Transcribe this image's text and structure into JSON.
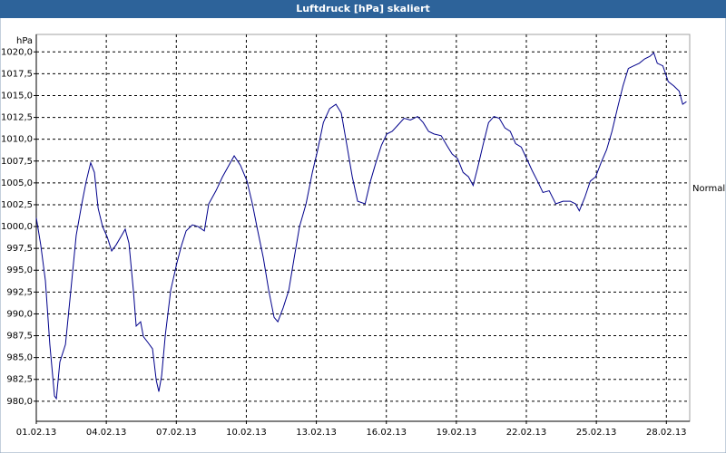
{
  "chart_data": {
    "type": "line",
    "title": "Luftdruck [hPa] skaliert",
    "y_label": "hPa",
    "annotation": "Normal",
    "x": [
      0,
      0.19,
      0.39,
      0.58,
      0.78,
      0.86,
      1.01,
      1.25,
      1.48,
      1.71,
      1.95,
      2.14,
      2.33,
      2.49,
      2.65,
      2.84,
      3.04,
      3.23,
      3.42,
      3.66,
      3.81,
      3.97,
      4.16,
      4.28,
      4.47,
      4.59,
      4.79,
      4.98,
      5.14,
      5.25,
      5.37,
      5.53,
      5.76,
      6.03,
      6.23,
      6.42,
      6.69,
      6.93,
      7.2,
      7.39,
      7.7,
      7.98,
      8.25,
      8.48,
      8.75,
      9.03,
      9.26,
      9.49,
      9.73,
      9.96,
      10.19,
      10.35,
      10.58,
      10.82,
      11.05,
      11.28,
      11.56,
      11.83,
      12.06,
      12.3,
      12.57,
      12.84,
      13.07,
      13.31,
      13.54,
      13.77,
      14.09,
      14.32,
      14.55,
      14.79,
      15.02,
      15.25,
      15.49,
      15.76,
      16.03,
      16.34,
      16.58,
      16.81,
      17.04,
      17.35,
      17.59,
      17.82,
      18.05,
      18.29,
      18.52,
      18.72,
      18.91,
      19.14,
      19.38,
      19.61,
      19.84,
      20.08,
      20.31,
      20.54,
      20.78,
      21.01,
      21.25,
      21.48,
      21.71,
      21.98,
      22.26,
      22.57,
      22.88,
      23.11,
      23.27,
      23.5,
      23.74,
      23.97,
      24.2,
      24.44,
      24.67,
      24.9,
      25.14,
      25.37,
      25.6,
      25.84,
      26.07,
      26.3,
      26.46,
      26.61,
      26.85,
      27.08,
      27.32,
      27.55,
      27.7,
      27.86
    ],
    "series": [
      {
        "name": "Luftdruck",
        "color": "#00008b",
        "values": [
          1001.0,
          997.9,
          993.8,
          986.5,
          980.6,
          980.3,
          984.5,
          986.5,
          992.7,
          999.0,
          1002.6,
          1005.2,
          1007.3,
          1006.2,
          1002.1,
          1000.0,
          998.8,
          997.2,
          997.9,
          999.0,
          999.7,
          998.1,
          992.7,
          988.6,
          989.1,
          987.4,
          986.7,
          986.0,
          982.4,
          981.1,
          982.9,
          987.6,
          992.7,
          995.9,
          997.9,
          999.5,
          1000.2,
          1000.0,
          999.5,
          1002.6,
          1004.1,
          1005.7,
          1007.0,
          1008.1,
          1007.0,
          1005.2,
          1002.6,
          999.5,
          996.4,
          992.7,
          989.6,
          989.1,
          990.7,
          992.7,
          996.4,
          1000.0,
          1002.6,
          1006.2,
          1008.8,
          1011.9,
          1013.5,
          1014.0,
          1013.0,
          1009.3,
          1005.7,
          1002.9,
          1002.6,
          1005.2,
          1007.3,
          1009.3,
          1010.6,
          1010.9,
          1011.6,
          1012.4,
          1012.2,
          1012.6,
          1011.9,
          1010.9,
          1010.6,
          1010.4,
          1009.3,
          1008.3,
          1007.8,
          1006.2,
          1005.7,
          1004.7,
          1006.7,
          1009.3,
          1011.9,
          1012.6,
          1012.4,
          1011.3,
          1010.9,
          1009.5,
          1009.1,
          1007.8,
          1006.4,
          1005.2,
          1003.9,
          1004.1,
          1002.6,
          1002.9,
          1002.9,
          1002.6,
          1001.8,
          1003.3,
          1005.2,
          1005.7,
          1007.3,
          1008.8,
          1010.9,
          1013.5,
          1016.1,
          1018.1,
          1018.4,
          1018.7,
          1019.2,
          1019.5,
          1019.9,
          1018.7,
          1018.4,
          1016.6,
          1016.1,
          1015.5,
          1014.0,
          1014.3
        ]
      }
    ],
    "xlim": [
      0,
      28
    ],
    "xticks": [
      {
        "value": 0,
        "label": "01.02.13"
      },
      {
        "value": 3,
        "label": "04.02.13"
      },
      {
        "value": 6,
        "label": "07.02.13"
      },
      {
        "value": 9,
        "label": "10.02.13"
      },
      {
        "value": 12,
        "label": "13.02.13"
      },
      {
        "value": 15,
        "label": "16.02.13"
      },
      {
        "value": 18,
        "label": "19.02.13"
      },
      {
        "value": 21,
        "label": "22.02.13"
      },
      {
        "value": 24,
        "label": "25.02.13"
      },
      {
        "value": 27,
        "label": "28.02.13"
      }
    ],
    "ylim": [
      977.7,
      1022.0
    ],
    "yticks": [
      {
        "value": 980,
        "label": "980,0"
      },
      {
        "value": 982.5,
        "label": "982,5"
      },
      {
        "value": 985,
        "label": "985,0"
      },
      {
        "value": 987.5,
        "label": "987,5"
      },
      {
        "value": 990,
        "label": "990,0"
      },
      {
        "value": 992.5,
        "label": "992,5"
      },
      {
        "value": 995,
        "label": "995,0"
      },
      {
        "value": 997.5,
        "label": "997,5"
      },
      {
        "value": 1000,
        "label": "1000,0"
      },
      {
        "value": 1002.5,
        "label": "1002,5"
      },
      {
        "value": 1005,
        "label": "1005,0"
      },
      {
        "value": 1007.5,
        "label": "1007,5"
      },
      {
        "value": 1010,
        "label": "1010,0"
      },
      {
        "value": 1012.5,
        "label": "1012,5"
      },
      {
        "value": 1015,
        "label": "1015,0"
      },
      {
        "value": 1017.5,
        "label": "1017,5"
      },
      {
        "value": 1020,
        "label": "1020,0"
      }
    ],
    "grid": true
  }
}
